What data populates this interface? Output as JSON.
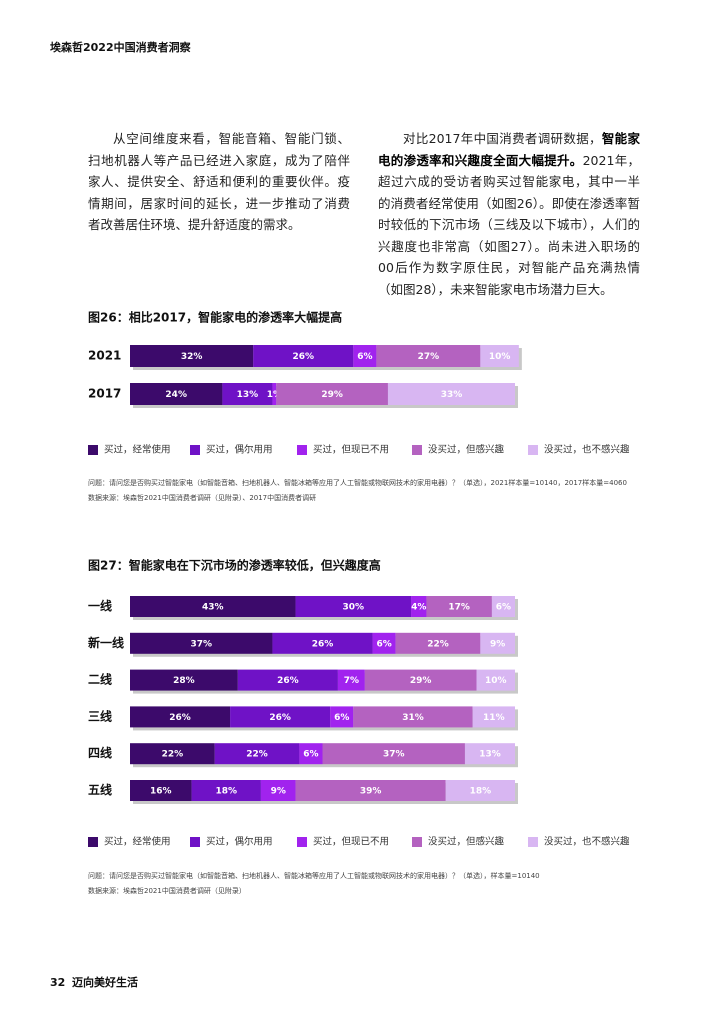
{
  "header": {
    "title": "埃森哲2022中国消费者洞察"
  },
  "paragraphs": {
    "left": [
      {
        "text": "从空间维度来看，智能音箱、智能门锁、扫地机器人等产品已经进入家庭，成为了陪伴家人、提供安全、舒适和便利的重要伙伴。疫情期间，居家时间的延长，进一步推动了消费者改善居住环境、提升舒适度的需求。",
        "bold": false
      }
    ],
    "right": [
      {
        "text": "对比2017年中国消费者调研数据，",
        "bold": false
      },
      {
        "text": "智能家电的渗透率和兴趣度全面大幅提升。",
        "bold": true
      },
      {
        "text": "2021年，超过六成的受访者购买过智能家电，其中一半的消费者经常使用（如图26）。即使在渗透率暂时较低的下沉市场（三线及以下城市），人们的兴趣度也非常高（如图27）。尚未进入职场的00后作为数字原住民，对智能产品充满热情（如图28），未来智能家电市场潜力巨大。",
        "bold": false
      }
    ]
  },
  "chart_data": [
    {
      "type": "stacked-bar",
      "title": "图26：相比2017，智能家电的渗透率大幅提高",
      "categories": [
        "2021",
        "2017"
      ],
      "xlim": [
        0,
        100
      ],
      "series": [
        {
          "name": "买过，经常使用",
          "color": "#3c0a6b",
          "values": [
            32,
            24
          ],
          "value_labels": [
            "32%",
            "24%"
          ]
        },
        {
          "name": "买过，偶尔用用",
          "color": "#6f12c6",
          "values": [
            26,
            13
          ],
          "value_labels": [
            "26%",
            "13%"
          ]
        },
        {
          "name": "买过，但现已不用",
          "color": "#a123ee",
          "values": [
            6,
            1
          ],
          "value_labels": [
            "6%",
            "1%"
          ]
        },
        {
          "name": "没买过，但感兴趣",
          "color": "#b462c0",
          "values": [
            27,
            29
          ],
          "value_labels": [
            "27%",
            "29%"
          ]
        },
        {
          "name": "没买过，也不感兴趣",
          "color": "#d8b6f2",
          "values": [
            10,
            33
          ],
          "value_labels": [
            "10%",
            "33%"
          ]
        }
      ],
      "notes": [
        "问题：请问您是否购买过智能家电（如智能音箱、扫地机器人、智能冰箱等应用了人工智能或物联网技术的家用电器）？（单选），2021样本量=10140，2017样本量=4060",
        "数据来源：埃森哲2021中国消费者调研（见附录）、2017中国消费者调研"
      ]
    },
    {
      "type": "stacked-bar",
      "title": "图27：智能家电在下沉市场的渗透率较低，但兴趣度高",
      "categories": [
        "一线",
        "新一线",
        "二线",
        "三线",
        "四线",
        "五线"
      ],
      "xlim": [
        0,
        100
      ],
      "series": [
        {
          "name": "买过，经常使用",
          "color": "#3c0a6b",
          "values": [
            43,
            37,
            28,
            26,
            22,
            16
          ],
          "value_labels": [
            "43%",
            "37%",
            "28%",
            "26%",
            "22%",
            "16%"
          ]
        },
        {
          "name": "买过，偶尔用用",
          "color": "#6f12c6",
          "values": [
            30,
            26,
            26,
            26,
            22,
            18
          ],
          "value_labels": [
            "30%",
            "26%",
            "26%",
            "26%",
            "22%",
            "18%"
          ]
        },
        {
          "name": "买过，但现已不用",
          "color": "#a123ee",
          "values": [
            4,
            6,
            7,
            6,
            6,
            9
          ],
          "value_labels": [
            "4%",
            "6%",
            "7%",
            "6%",
            "6%",
            "9%"
          ]
        },
        {
          "name": "没买过，但感兴趣",
          "color": "#b462c0",
          "values": [
            17,
            22,
            29,
            31,
            37,
            39
          ],
          "value_labels": [
            "17%",
            "22%",
            "29%",
            "31%",
            "37%",
            "39%"
          ]
        },
        {
          "name": "没买过，也不感兴趣",
          "color": "#d8b6f2",
          "values": [
            6,
            9,
            10,
            11,
            13,
            18
          ],
          "value_labels": [
            "6%",
            "9%",
            "10%",
            "11%",
            "13%",
            "18%"
          ]
        }
      ],
      "notes": [
        "问题：请问您是否购买过智能家电（如智能音箱、扫地机器人、智能冰箱等应用了人工智能或物联网技术的家用电器）？（单选），样本量=10140",
        "数据来源：埃森哲2021中国消费者调研（见附录）"
      ]
    }
  ],
  "footer": {
    "page": "32",
    "section": "迈向美好生活"
  }
}
